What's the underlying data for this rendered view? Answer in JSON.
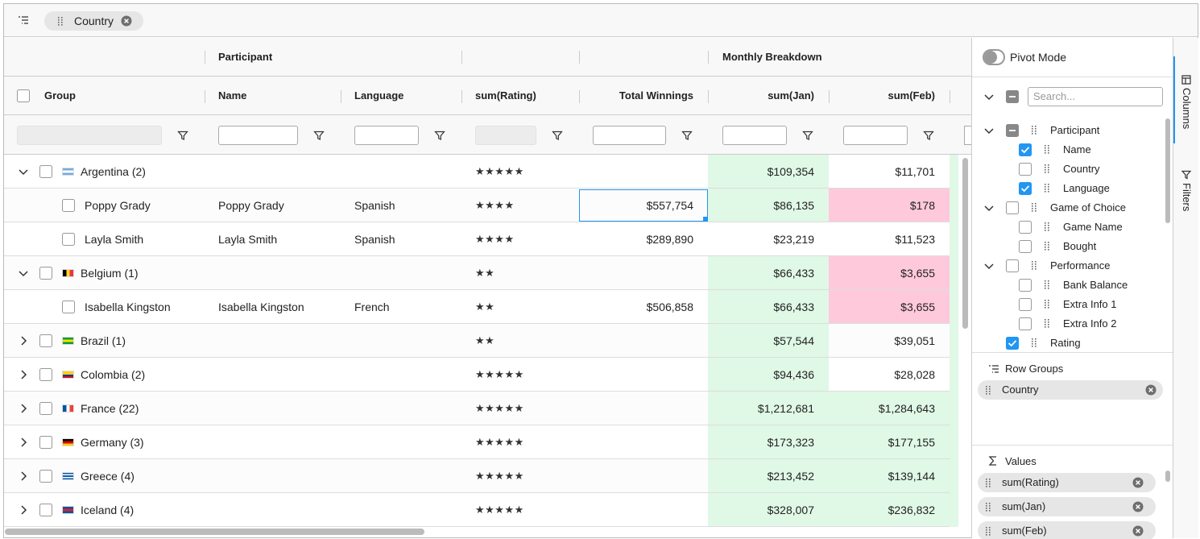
{
  "toolbar": {
    "row_group_chip": "Country"
  },
  "header_groups": {
    "participant": "Participant",
    "monthly_breakdown": "Monthly Breakdown"
  },
  "columns": [
    "Group",
    "Name",
    "Language",
    "sum(Rating)",
    "Total Winnings",
    "sum(Jan)",
    "sum(Feb)"
  ],
  "rows": [
    {
      "level": 0,
      "expanded": true,
      "group": "Argentina (2)",
      "flag": {
        "dir": "h",
        "colors": [
          "#74acdf",
          "#ffffff",
          "#74acdf"
        ]
      },
      "rating": "★★★★★",
      "jan": "$109,354",
      "jan_bg": "#e0f8e6",
      "feb": "$11,701"
    },
    {
      "level": 1,
      "group": "Poppy Grady",
      "name": "Poppy Grady",
      "language": "Spanish",
      "rating": "★★★★",
      "total": "$557,754",
      "total_selected": true,
      "jan": "$86,135",
      "jan_bg": "#e0f8e6",
      "feb": "$178",
      "feb_bg": "#ffc9dc"
    },
    {
      "level": 1,
      "group": "Layla Smith",
      "name": "Layla Smith",
      "language": "Spanish",
      "rating": "★★★★",
      "total": "$289,890",
      "jan": "$23,219",
      "feb": "$11,523"
    },
    {
      "level": 0,
      "expanded": true,
      "group": "Belgium (1)",
      "flag": {
        "dir": "v",
        "colors": [
          "#000000",
          "#fdda24",
          "#ef3340"
        ]
      },
      "rating": "★★",
      "jan": "$66,433",
      "jan_bg": "#e0f8e6",
      "feb": "$3,655",
      "feb_bg": "#ffc9dc"
    },
    {
      "level": 1,
      "group": "Isabella Kingston",
      "name": "Isabella Kingston",
      "language": "French",
      "rating": "★★",
      "total": "$506,858",
      "jan": "$66,433",
      "jan_bg": "#e0f8e6",
      "feb": "$3,655",
      "feb_bg": "#ffc9dc"
    },
    {
      "level": 0,
      "expanded": false,
      "group": "Brazil (1)",
      "flag": {
        "dir": "h",
        "colors": [
          "#009c3b",
          "#ffdf00",
          "#009c3b"
        ]
      },
      "rating": "★★",
      "jan": "$57,544",
      "jan_bg": "#e0f8e6",
      "feb": "$39,051"
    },
    {
      "level": 0,
      "expanded": false,
      "group": "Colombia (2)",
      "flag": {
        "dir": "h",
        "colors": [
          "#fcd116",
          "#fcd116",
          "#003893",
          "#ce1126"
        ]
      },
      "rating": "★★★★★",
      "jan": "$94,436",
      "jan_bg": "#e0f8e6",
      "feb": "$28,028"
    },
    {
      "level": 0,
      "expanded": false,
      "group": "France (22)",
      "flag": {
        "dir": "v",
        "colors": [
          "#0055a4",
          "#ffffff",
          "#ef4135"
        ]
      },
      "rating": "★★★★★",
      "jan": "$1,212,681",
      "jan_bg": "#e0f8e6",
      "feb": "$1,284,643",
      "feb_bg": "#e0f8e6"
    },
    {
      "level": 0,
      "expanded": false,
      "group": "Germany (3)",
      "flag": {
        "dir": "h",
        "colors": [
          "#000000",
          "#dd0000",
          "#ffce00"
        ]
      },
      "rating": "★★★★★",
      "jan": "$173,323",
      "jan_bg": "#e0f8e6",
      "feb": "$177,155",
      "feb_bg": "#e0f8e6"
    },
    {
      "level": 0,
      "expanded": false,
      "group": "Greece (4)",
      "flag": {
        "dir": "h",
        "colors": [
          "#0d5eaf",
          "#ffffff",
          "#0d5eaf",
          "#ffffff",
          "#0d5eaf"
        ]
      },
      "rating": "★★★★★",
      "jan": "$213,452",
      "jan_bg": "#e0f8e6",
      "feb": "$139,144",
      "feb_bg": "#e0f8e6"
    },
    {
      "level": 0,
      "expanded": false,
      "group": "Iceland (4)",
      "flag": {
        "dir": "h",
        "colors": [
          "#02529c",
          "#dc1e35",
          "#02529c"
        ]
      },
      "rating": "★★★★★",
      "jan": "$328,007",
      "jan_bg": "#e0f8e6",
      "feb": "$236,832",
      "feb_bg": "#e0f8e6"
    }
  ],
  "side_panel": {
    "pivot_mode": "Pivot Mode",
    "search_placeholder": "Search...",
    "columns": [
      {
        "label": "Participant",
        "level": 0,
        "expandable": true,
        "state": "partial"
      },
      {
        "label": "Name",
        "level": 1,
        "state": "checked"
      },
      {
        "label": "Country",
        "level": 1,
        "state": "unchecked"
      },
      {
        "label": "Language",
        "level": 1,
        "state": "checked"
      },
      {
        "label": "Game of Choice",
        "level": 0,
        "expandable": true,
        "state": "unchecked"
      },
      {
        "label": "Game Name",
        "level": 1,
        "state": "unchecked"
      },
      {
        "label": "Bought",
        "level": 1,
        "state": "unchecked"
      },
      {
        "label": "Performance",
        "level": 0,
        "expandable": true,
        "state": "unchecked"
      },
      {
        "label": "Bank Balance",
        "level": 1,
        "state": "unchecked"
      },
      {
        "label": "Extra Info 1",
        "level": 1,
        "state": "unchecked"
      },
      {
        "label": "Extra Info 2",
        "level": 1,
        "state": "unchecked"
      },
      {
        "label": "Rating",
        "level": 0,
        "state": "checked"
      }
    ],
    "row_groups": {
      "title": "Row Groups",
      "chips": [
        "Country"
      ]
    },
    "values": {
      "title": "Values",
      "chips": [
        "sum(Rating)",
        "sum(Jan)",
        "sum(Feb)"
      ]
    }
  },
  "side_tabs": [
    "Columns",
    "Filters"
  ]
}
